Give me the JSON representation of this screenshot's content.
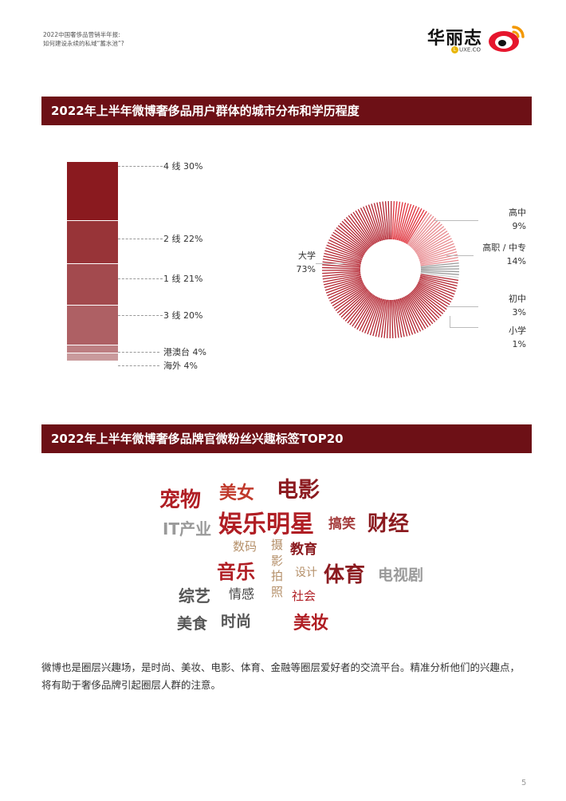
{
  "header": {
    "line1": "2022中国奢侈品营销半年报:",
    "line2": "如何建设永续的私域“蓄水池”?",
    "brand_name": "华丽志",
    "brand_sub_badge": "L",
    "brand_sub": "UXE.CO"
  },
  "section1": {
    "title": "2022年上半年微博奢侈品用户群体的城市分布和学历程度"
  },
  "city_chart": {
    "type": "bar",
    "stacked": true,
    "categories": [
      "4 线",
      "2 线",
      "1 线",
      "3 线",
      "港澳台",
      "海外"
    ],
    "values": [
      30,
      22,
      21,
      20,
      4,
      4
    ],
    "labels": [
      "4 线 30%",
      "2 线 22%",
      "1 线 21%",
      "3 线 20%",
      "港澳台 4%",
      "海外    4%"
    ],
    "unit": "%"
  },
  "edu_chart": {
    "type": "pie",
    "style": "radial-lines-donut",
    "categories": [
      "大学",
      "高中",
      "高职 / 中专",
      "初中",
      "小学"
    ],
    "values": [
      73,
      9,
      14,
      3,
      1
    ],
    "names": [
      "大学",
      "高中",
      "高职 / 中专",
      "初中",
      "小学"
    ],
    "percents": [
      "73%",
      "9%",
      "14%",
      "3%",
      "1%"
    ],
    "colors": [
      "#b3232f",
      "#e0303a",
      "#e88a8f",
      "#9a9a9a",
      "#cfcfcf"
    ]
  },
  "section2": {
    "title": "2022年上半年微博奢侈品牌官微粉丝兴趣标签TOP20"
  },
  "word_cloud": [
    {
      "text": "宠物",
      "color": "#b01e24"
    },
    {
      "text": "美女",
      "color": "#c0392b"
    },
    {
      "text": "电影",
      "color": "#8b1a1f"
    },
    {
      "text": "IT产业",
      "color": "#9a9a9a"
    },
    {
      "text": "娱乐明星",
      "color": "#b01e24"
    },
    {
      "text": "搞笑",
      "color": "#a33a3a"
    },
    {
      "text": "财经",
      "color": "#8b1a1f"
    },
    {
      "text": "数码",
      "color": "#b5906a"
    },
    {
      "text": "摄影拍照",
      "color": "#b5906a"
    },
    {
      "text": "教育",
      "color": "#8b1a1f"
    },
    {
      "text": "音乐",
      "color": "#b01e24"
    },
    {
      "text": "设计",
      "color": "#b5906a"
    },
    {
      "text": "体育",
      "color": "#8b1a1f"
    },
    {
      "text": "电视剧",
      "color": "#9a9a9a"
    },
    {
      "text": "综艺",
      "color": "#555555"
    },
    {
      "text": "情感",
      "color": "#444444"
    },
    {
      "text": "社会",
      "color": "#b01e24"
    },
    {
      "text": "美食",
      "color": "#555555"
    },
    {
      "text": "时尚",
      "color": "#555555"
    },
    {
      "text": "美妆",
      "color": "#b01e24"
    }
  ],
  "paragraph": "微博也是圈层兴趣场，是时尚、美妆、电影、体育、金融等圈层爱好者的交流平台。精准分析他们的兴趣点，将有助于奢侈品牌引起圈层人群的注意。",
  "page_number": "5"
}
